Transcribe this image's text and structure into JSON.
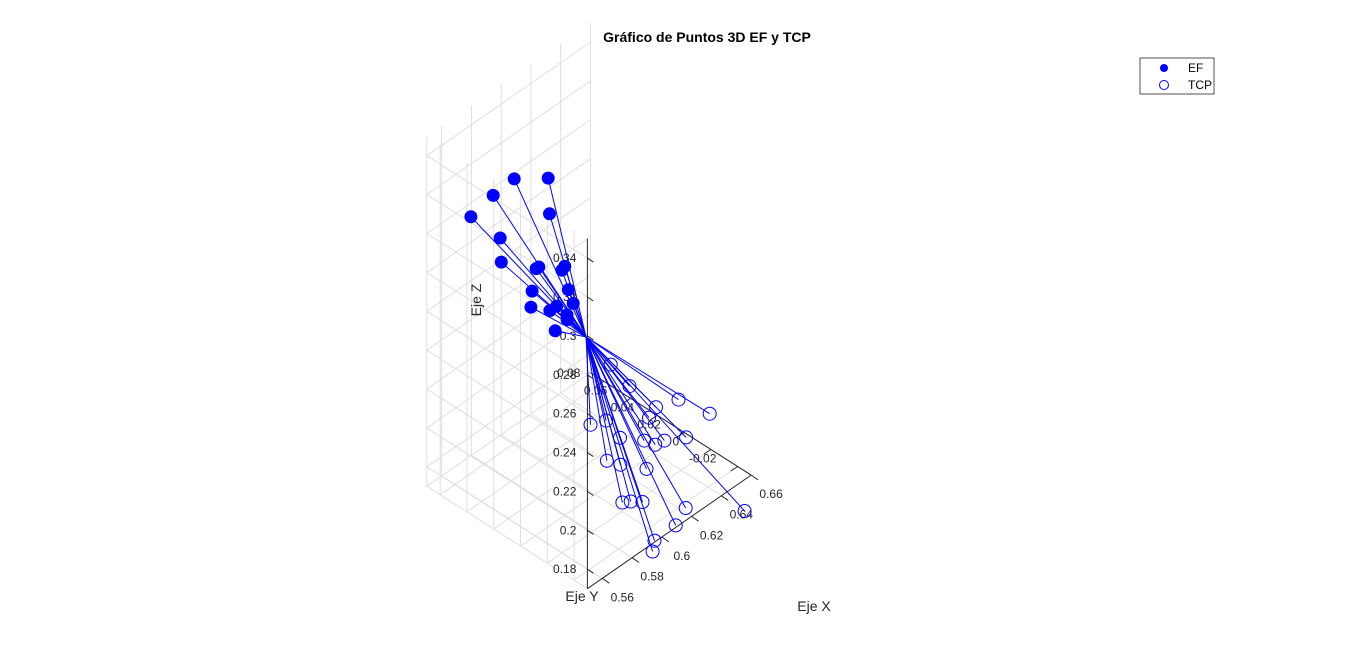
{
  "chart_data": {
    "type": "scatter3d",
    "title": "Gráfico de Puntos 3D EF y TCP",
    "xlabel": "Eje X",
    "ylabel": "Eje Y",
    "zlabel": "Eje Z",
    "xlim": [
      0.55,
      0.66
    ],
    "ylim": [
      -0.03,
      0.09
    ],
    "zlim": [
      0.17,
      0.35
    ],
    "xticks": [
      "0.56",
      "0.58",
      "0.6",
      "0.62",
      "0.64",
      "0.66"
    ],
    "yticks": [
      "-0.02",
      "0",
      "0.02",
      "0.04",
      "0.06",
      "0.08"
    ],
    "zticks": [
      "0.18",
      "0.2",
      "0.22",
      "0.24",
      "0.26",
      "0.28",
      "0.3",
      "0.32",
      "0.34"
    ],
    "grid": true,
    "legend_position": "top-right",
    "legend": [
      "EF",
      "TCP"
    ],
    "color": "#0000ff",
    "center": [
      0.603,
      0.03,
      0.245
    ],
    "series": [
      {
        "name": "EF",
        "marker": "filled-circle",
        "points": [
          [
            0.5532,
            0.0606,
            0.3198
          ],
          [
            0.5696,
            0.0622,
            0.3214
          ],
          [
            0.5833,
            0.0617,
            0.3228
          ],
          [
            0.6063,
            0.0619,
            0.3109
          ],
          [
            0.5579,
            0.0431,
            0.3017
          ],
          [
            0.5639,
            0.0506,
            0.3076
          ],
          [
            0.5775,
            0.0388,
            0.2898
          ],
          [
            0.6009,
            0.0549,
            0.2985
          ],
          [
            0.5704,
            0.034,
            0.2841
          ],
          [
            0.5814,
            0.0412,
            0.2875
          ],
          [
            0.5806,
            0.027,
            0.274
          ],
          [
            0.5756,
            0.0265,
            0.2746
          ],
          [
            0.5926,
            0.0316,
            0.2741
          ],
          [
            0.5937,
            0.0376,
            0.2809
          ],
          [
            0.5932,
            0.0349,
            0.2843
          ],
          [
            0.5827,
            0.0214,
            0.2684
          ],
          [
            0.5905,
            0.0256,
            0.2708
          ],
          [
            0.5902,
            0.03,
            0.2631
          ],
          [
            0.5712,
            0.0358,
            0.2746
          ],
          [
            0.5752,
            0.0221,
            0.2664
          ]
        ]
      },
      {
        "name": "TCP",
        "marker": "open-circle",
        "points": [
          [
            0.5941,
            0.0045,
            0.1972
          ],
          [
            0.6182,
            0.0284,
            0.2234
          ],
          [
            0.6179,
            0.014,
            0.2188
          ],
          [
            0.605,
            0.0172,
            0.2065
          ],
          [
            0.6116,
            0.0141,
            0.1955
          ],
          [
            0.5979,
            -0.0091,
            0.1802
          ],
          [
            0.6006,
            0.0016,
            0.193
          ],
          [
            0.6212,
            -0.0015,
            0.1937
          ],
          [
            0.63,
            0.0129,
            0.1966
          ],
          [
            0.6188,
            0.0023,
            0.1809
          ],
          [
            0.624,
            0.0098,
            0.1894
          ],
          [
            0.6383,
            0.0169,
            0.1958
          ],
          [
            0.6324,
            0.0041,
            0.1874
          ],
          [
            0.6501,
            0.0132,
            0.1951
          ],
          [
            0.6424,
            -0.001,
            0.186
          ],
          [
            0.6253,
            -0.0197,
            0.167
          ],
          [
            0.5984,
            -0.0249,
            0.1612
          ],
          [
            0.604,
            -0.0111,
            0.1776
          ],
          [
            0.6608,
            0.0018,
            0.1872
          ],
          [
            0.6498,
            -0.0365,
            0.1598
          ],
          [
            0.6001,
            -0.0244,
            0.1656
          ],
          [
            0.612,
            -0.027,
            0.1683
          ],
          [
            0.593,
            0.0155,
            0.2115
          ],
          [
            0.5904,
            -0.0112,
            0.1846
          ]
        ]
      }
    ]
  }
}
